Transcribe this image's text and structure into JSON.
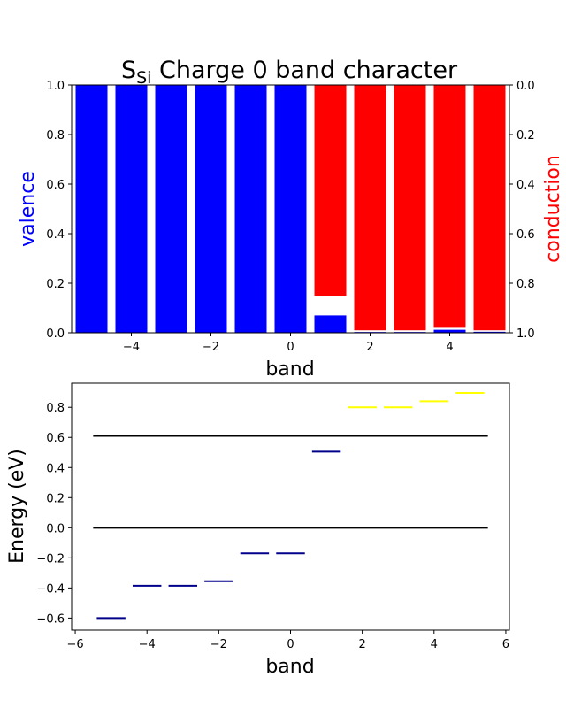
{
  "chart_data": [
    {
      "type": "bar",
      "title_main": "S",
      "title_sub": "Si",
      "title_rest": " Charge 0 band character",
      "xlabel": "band",
      "ylabel_left": "valence",
      "ylabel_right": "conduction",
      "colors": {
        "valence": "#0000ff",
        "conduction": "#ff0000",
        "label_valence": "#0000ff",
        "label_conduction": "#ff0000"
      },
      "xlim": [
        -5.5,
        5.5
      ],
      "ylim_left": [
        0,
        1
      ],
      "ylim_right_inverted": [
        0,
        1
      ],
      "x_ticks": [
        "−4",
        "−2",
        "0",
        "2",
        "4"
      ],
      "x_tick_values": [
        -4,
        -2,
        0,
        2,
        4
      ],
      "y_ticks_left": [
        "0.0",
        "0.2",
        "0.4",
        "0.6",
        "0.8",
        "1.0"
      ],
      "y_ticks_right": [
        "0.0",
        "0.2",
        "0.4",
        "0.6",
        "0.8",
        "1.0"
      ],
      "bands": [
        -5,
        -4,
        -3,
        -2,
        -1,
        0,
        1,
        2,
        3,
        4,
        5
      ],
      "valence_values": [
        1.0,
        1.0,
        1.0,
        1.0,
        1.0,
        1.0,
        0.07,
        0.003,
        0.003,
        0.012,
        0.004
      ],
      "conduction_values": [
        0.0,
        0.0,
        0.0,
        0.0,
        0.0,
        0.0,
        0.85,
        0.99,
        0.99,
        0.98,
        0.99
      ]
    },
    {
      "type": "line",
      "xlabel": "band",
      "ylabel": "Energy (eV)",
      "xlim": [
        -6.1,
        6.1
      ],
      "ylim": [
        -0.68,
        0.96
      ],
      "x_ticks": [
        "−6",
        "−4",
        "−2",
        "0",
        "2",
        "4",
        "6"
      ],
      "x_tick_values": [
        -6,
        -4,
        -2,
        0,
        2,
        4,
        6
      ],
      "y_ticks": [
        "−0.6",
        "−0.4",
        "−0.2",
        "0.0",
        "0.2",
        "0.4",
        "0.6",
        "0.8"
      ],
      "y_tick_values": [
        -0.6,
        -0.4,
        -0.2,
        0.0,
        0.2,
        0.4,
        0.6,
        0.8
      ],
      "reference_lines": [
        {
          "y": 0.0,
          "x_range": [
            -5.5,
            5.5
          ],
          "color": "#000000"
        },
        {
          "y": 0.61,
          "x_range": [
            -5.5,
            5.5
          ],
          "color": "#000000"
        }
      ],
      "levels": [
        {
          "band": -5,
          "energy": -0.6,
          "color": "#00008b"
        },
        {
          "band": -4,
          "energy": -0.385,
          "color": "#00008b"
        },
        {
          "band": -3,
          "energy": -0.385,
          "color": "#00008b"
        },
        {
          "band": -2,
          "energy": -0.355,
          "color": "#00008b"
        },
        {
          "band": -1,
          "energy": -0.17,
          "color": "#00008b"
        },
        {
          "band": 0,
          "energy": -0.17,
          "color": "#00008b"
        },
        {
          "band": 1,
          "energy": 0.505,
          "color": "#00008b"
        },
        {
          "band": 2,
          "energy": 0.8,
          "color": "#ffff00"
        },
        {
          "band": 3,
          "energy": 0.8,
          "color": "#ffff00"
        },
        {
          "band": 4,
          "energy": 0.84,
          "color": "#ffff00"
        },
        {
          "band": 5,
          "energy": 0.895,
          "color": "#ffff00"
        }
      ],
      "level_halfwidth": 0.4
    }
  ]
}
